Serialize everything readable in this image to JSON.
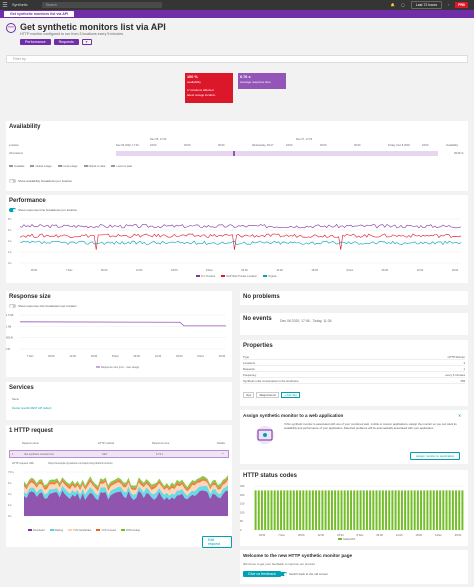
{
  "topbar": {
    "crumb": "Synthetic",
    "search_placeholder": "Search",
    "timeframe": "Last 72 hours",
    "badge": "PR0"
  },
  "subbar": {
    "tab": "Get synthetic monitors list via API"
  },
  "header": {
    "logo": "HTTP",
    "title": "Get synthetic monitors list via API",
    "subtitle": "HTTP monitor configured to run from 3 locations every 5 minutes",
    "performance_btn": "Performance",
    "requests_btn": "Requests",
    "more_btn": "▾"
  },
  "filter": {
    "placeholder": "Filter by"
  },
  "tiles": [
    {
      "value": "100 %",
      "label": "availability",
      "note": "1/ locations affected",
      "note2": "latest outage location",
      "color": "#dc172a"
    },
    {
      "value": "6.76 s",
      "label": "Average response time",
      "color": "#9355b7"
    }
  ],
  "availability": {
    "title": "Availability",
    "col_location": "Location",
    "col_availability": "Availability",
    "top_ticks": [
      "Dec 05, 17:00",
      "Dec 07, 17:00"
    ],
    "ticks": [
      "Dec 06 2020, 17:20",
      "18:00",
      "00:00",
      "06:00",
      "Wednesday, 09.27",
      "18:00",
      "00:00",
      "06:00",
      "Friday, Dec 8 2020",
      "18:00"
    ],
    "row_label": "All locations",
    "row_value": "99.96 %",
    "legend": [
      "Available",
      "Global outage",
      "Local outage",
      "Global no data",
      "Local no data"
    ],
    "legend_colors": [
      "#ffffff",
      "#dc172a",
      "#ef651f",
      "#888888",
      "#cccccc"
    ],
    "toggle_label": "Show availability breakdown per location"
  },
  "performance": {
    "title": "Performance",
    "toggle_label": "Show response time breakdown per location",
    "y_ticks": [
      "8 s",
      "6 s",
      "4 s",
      "2 s",
      "0 s"
    ],
    "x_ticks": [
      "18:00",
      "7 Dec",
      "06:00",
      "12:00",
      "18:00",
      "8 Dec",
      "06:00",
      "12:00",
      "18:00",
      "9 Dec",
      "06:00",
      "12:00",
      "18:00"
    ],
    "legend": [
      "N.C Tenants",
      "N&P Web Private Location",
      "Virginia"
    ],
    "legend_colors": [
      "#7c38a1",
      "#dc172a",
      "#00a1b2"
    ]
  },
  "response_size": {
    "title": "Response size",
    "toggle_label": "Show response size breakdown per location",
    "y_ticks": [
      "1.5 kB",
      "1 kB",
      "500 B",
      "0 B"
    ],
    "x_ticks": [
      "7 Dec",
      "06:00",
      "12:00",
      "18:00",
      "8 Dec",
      "06:00",
      "12:00",
      "18:00",
      "9 Dec",
      "06:00"
    ],
    "legend": "Response size (min - max range)"
  },
  "no_problems": {
    "title": "No problems"
  },
  "no_events": {
    "title": "No events",
    "range": "Dec 06 2020, 17:06 - Today, 11:26"
  },
  "properties": {
    "title": "Properties",
    "rows": [
      [
        "Type",
        "HTTP Monitor"
      ],
      [
        "Locations",
        "3"
      ],
      [
        "Requests",
        "1"
      ],
      [
        "Frequency",
        "every 5 minutes"
      ],
      [
        "Synthetic units consumption in the timeframe",
        "259"
      ]
    ],
    "tags": [
      "Ops",
      "dttags:banner"
    ],
    "add_tag": "+ Add Tag"
  },
  "assign": {
    "title": "Assign synthetic monitor to a web application",
    "body": "If this synthetic monitor is associated with one of your monitored web, mobile or custom applications, assign the monitor so you can track its availability and performance of your application. Detected problems will be automatically associated with your application.",
    "button": "Assign monitor to application"
  },
  "services": {
    "title": "Services",
    "col": "Name",
    "item": "Render specific REST API (labs/s)"
  },
  "http_status": {
    "title": "HTTP status codes",
    "y_ticks": [
      "250",
      "200",
      "150",
      "100",
      "50",
      "0"
    ],
    "x_ticks": [
      "18:00",
      "7 Dec",
      "06:00",
      "12:00",
      "18:00",
      "8 Dec",
      "06:00",
      "12:00",
      "18:00",
      "9 Dec",
      "06:00"
    ],
    "legend": "Status2XX"
  },
  "http_request": {
    "title": "1 HTTP request",
    "cols": [
      "Request name",
      "HTTP method",
      "Response time",
      "Details"
    ],
    "row": {
      "num": "1",
      "name": "Get synthetic monitors list",
      "method": "GET",
      "time": "6.73 s"
    },
    "url_label": "HTTP request URL",
    "url": "https://example.dynatrace.com/api/v1/synthetic/monitors",
    "y_ticks": [
      "7.8 s",
      "6 s",
      "4 s",
      "2 s",
      "0 s"
    ],
    "legend": [
      "Download",
      "Waiting",
      "TLS handshake",
      "TCP connect",
      "DNS lookup"
    ],
    "legend_colors": [
      "#7c38a1",
      "#4fd5e0",
      "#ffd0ab",
      "#ef651f",
      "#73be28"
    ],
    "edit_btn": "Edit request"
  },
  "welcome": {
    "title": "Welcome to the new HTTP synthetic monitor page",
    "body": "We'd love to get your feedback to improve our product",
    "feedback_btn": "Give us feedback",
    "switch_label": "Switch back to the old screen"
  }
}
